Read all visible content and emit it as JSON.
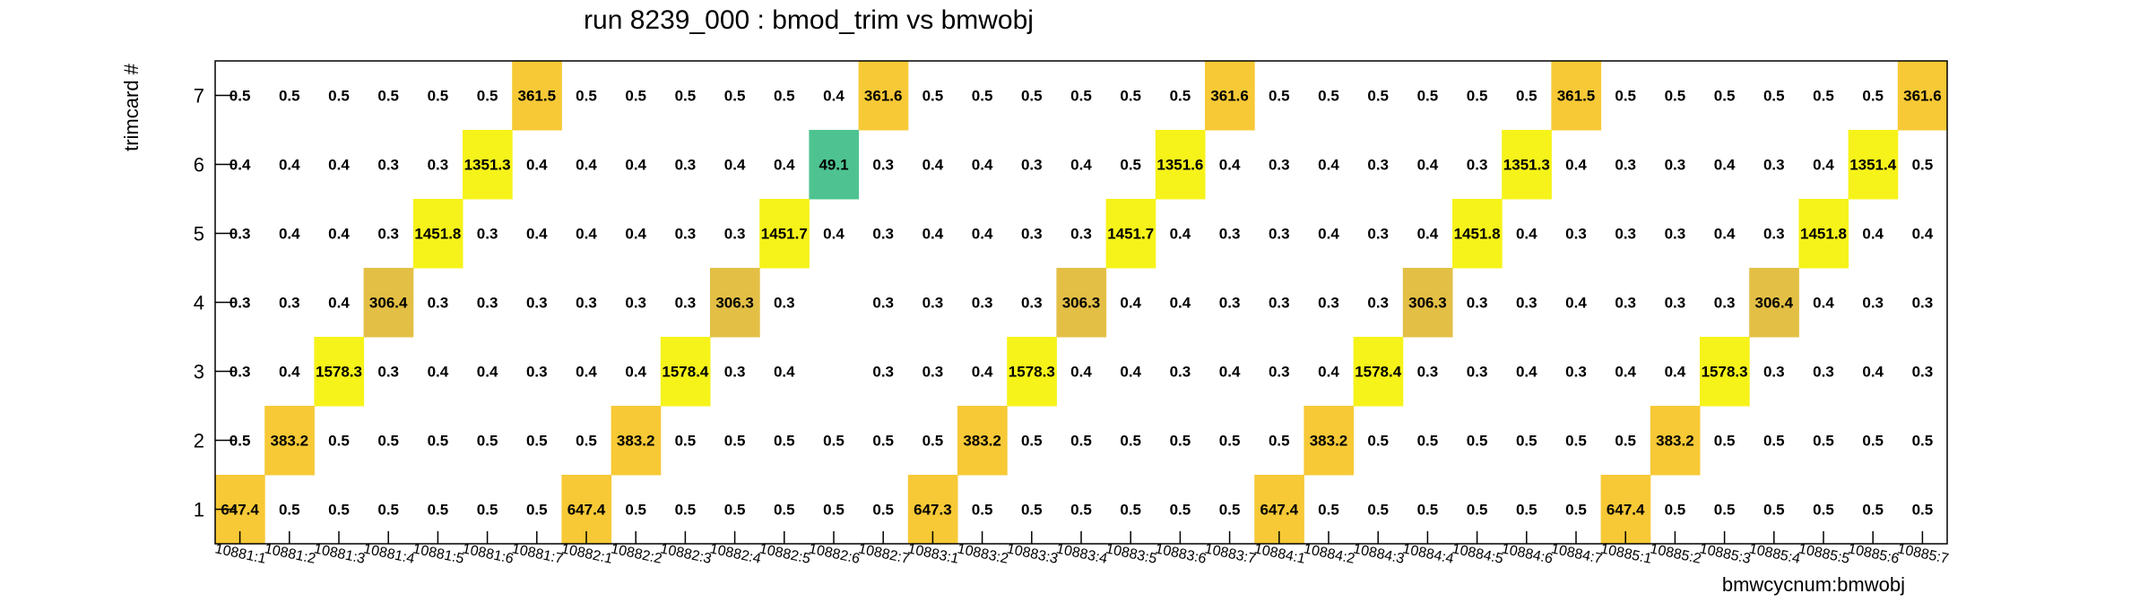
{
  "chart_data": {
    "type": "heatmap",
    "title": "run 8239_000 : bmod_trim vs bmwobj",
    "xlabel": "bmwcycnum:bmwobj",
    "ylabel": "trimcard #",
    "x_categories": [
      "10881:1",
      "10881:2",
      "10881:3",
      "10881:4",
      "10881:5",
      "10881:6",
      "10881:7",
      "10882:1",
      "10882:2",
      "10882:3",
      "10882:4",
      "10882:5",
      "10882:6",
      "10882:7",
      "10883:1",
      "10883:2",
      "10883:3",
      "10883:4",
      "10883:5",
      "10883:6",
      "10883:7",
      "10884:1",
      "10884:2",
      "10884:3",
      "10884:4",
      "10884:5",
      "10884:6",
      "10884:7",
      "10885:1",
      "10885:2",
      "10885:3",
      "10885:4",
      "10885:5",
      "10885:6",
      "10885:7"
    ],
    "y_categories": [
      "1",
      "2",
      "3",
      "4",
      "5",
      "6",
      "7"
    ],
    "values": [
      [
        647.4,
        0.5,
        0.5,
        0.5,
        0.5,
        0.5,
        0.5,
        647.4,
        0.5,
        0.5,
        0.5,
        0.5,
        0.5,
        0.5,
        647.3,
        0.5,
        0.5,
        0.5,
        0.5,
        0.5,
        0.5,
        647.4,
        0.5,
        0.5,
        0.5,
        0.5,
        0.5,
        0.5,
        647.4,
        0.5,
        0.5,
        0.5,
        0.5,
        0.5,
        0.5
      ],
      [
        0.5,
        383.2,
        0.5,
        0.5,
        0.5,
        0.5,
        0.5,
        0.5,
        383.2,
        0.5,
        0.5,
        0.5,
        0.5,
        0.5,
        0.5,
        383.2,
        0.5,
        0.5,
        0.5,
        0.5,
        0.5,
        0.5,
        383.2,
        0.5,
        0.5,
        0.5,
        0.5,
        0.5,
        0.5,
        383.2,
        0.5,
        0.5,
        0.5,
        0.5,
        0.5
      ],
      [
        0.3,
        0.4,
        1578.3,
        0.3,
        0.4,
        0.4,
        0.3,
        0.4,
        0.4,
        1578.4,
        0.3,
        0.4,
        null,
        0.3,
        0.3,
        0.4,
        1578.3,
        0.4,
        0.4,
        0.3,
        0.4,
        0.3,
        0.4,
        1578.4,
        0.3,
        0.3,
        0.4,
        0.3,
        0.4,
        0.4,
        1578.3,
        0.3,
        0.3,
        0.4,
        0.3
      ],
      [
        0.3,
        0.3,
        0.4,
        306.4,
        0.3,
        0.3,
        0.3,
        0.3,
        0.3,
        0.3,
        306.3,
        0.3,
        null,
        0.3,
        0.3,
        0.3,
        0.3,
        306.3,
        0.4,
        0.4,
        0.3,
        0.3,
        0.3,
        0.3,
        306.3,
        0.3,
        0.3,
        0.4,
        0.3,
        0.3,
        0.3,
        306.4,
        0.4,
        0.3,
        0.3
      ],
      [
        0.3,
        0.4,
        0.4,
        0.3,
        1451.8,
        0.3,
        0.4,
        0.4,
        0.4,
        0.3,
        0.3,
        1451.7,
        0.4,
        0.3,
        0.4,
        0.4,
        0.3,
        0.3,
        1451.7,
        0.4,
        0.3,
        0.3,
        0.4,
        0.3,
        0.4,
        1451.8,
        0.4,
        0.3,
        0.3,
        0.3,
        0.4,
        0.3,
        1451.8,
        0.4,
        0.4
      ],
      [
        0.4,
        0.4,
        0.4,
        0.3,
        0.3,
        1351.3,
        0.4,
        0.4,
        0.4,
        0.3,
        0.4,
        0.4,
        49.1,
        0.3,
        0.4,
        0.4,
        0.3,
        0.4,
        0.5,
        1351.6,
        0.4,
        0.3,
        0.4,
        0.3,
        0.4,
        0.3,
        1351.3,
        0.4,
        0.3,
        0.3,
        0.4,
        0.3,
        0.4,
        1351.4,
        0.5
      ],
      [
        0.5,
        0.5,
        0.5,
        0.5,
        0.5,
        0.5,
        361.5,
        0.5,
        0.5,
        0.5,
        0.5,
        0.5,
        0.4,
        361.6,
        0.5,
        0.5,
        0.5,
        0.5,
        0.5,
        0.5,
        361.6,
        0.5,
        0.5,
        0.5,
        0.5,
        0.5,
        0.5,
        361.5,
        0.5,
        0.5,
        0.5,
        0.5,
        0.5,
        0.5,
        361.6
      ]
    ],
    "colors": {
      "very_high": "#f6f31a",
      "high": "#f7c936",
      "mid": "#e3bf45",
      "low": "#4ec391",
      "minimal": "#ffffff"
    },
    "grid": false,
    "legend": "none"
  }
}
